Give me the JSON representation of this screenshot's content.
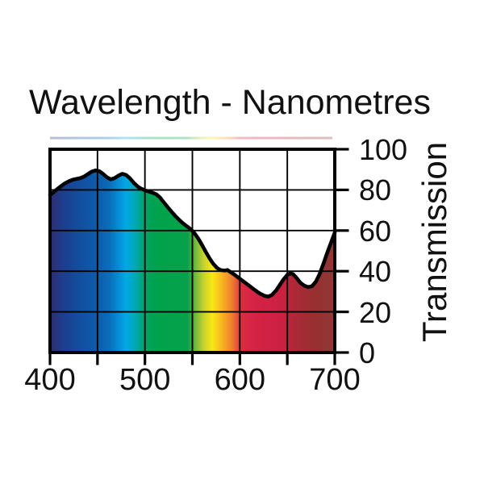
{
  "title": "Wavelength - Nanometres",
  "x_axis": {
    "labels": [
      "400",
      "500",
      "600",
      "700"
    ],
    "label_values": [
      400,
      500,
      600,
      700
    ],
    "ticks": [
      400,
      450,
      500,
      550,
      600,
      650,
      700
    ]
  },
  "y_axis": {
    "title": "Transmission",
    "labels": [
      "100",
      "80",
      "60",
      "40",
      "20",
      "0"
    ],
    "label_values": [
      100,
      80,
      60,
      40,
      20,
      0
    ],
    "ticks": [
      0,
      20,
      40,
      60,
      80,
      100
    ]
  },
  "chart_data": {
    "type": "area",
    "title": "Wavelength - Nanometres",
    "xlabel": "Wavelength - Nanometres",
    "ylabel": "Transmission",
    "xlim": [
      400,
      700
    ],
    "ylim": [
      0,
      100
    ],
    "grid": true,
    "legend": "none",
    "line_color": "#000000",
    "x": [
      400,
      404,
      408,
      412,
      416,
      420,
      424,
      428,
      432,
      436,
      440,
      444,
      448,
      452,
      456,
      460,
      464,
      468,
      472,
      476,
      480,
      484,
      488,
      492,
      496,
      500,
      504,
      508,
      512,
      516,
      520,
      524,
      528,
      532,
      536,
      540,
      544,
      548,
      552,
      556,
      560,
      564,
      568,
      572,
      576,
      580,
      584,
      587,
      590,
      594,
      598,
      602,
      606,
      610,
      614,
      618,
      622,
      626,
      630,
      634,
      638,
      642,
      646,
      650,
      653,
      656,
      660,
      664,
      668,
      672,
      676,
      680,
      684,
      688,
      692,
      696,
      700
    ],
    "y": [
      77.5,
      79,
      80.5,
      82,
      83.3,
      84.3,
      85,
      85.4,
      85.8,
      86.6,
      87.8,
      89,
      89.6,
      89.2,
      87.8,
      86.2,
      85.2,
      85.8,
      87,
      87.9,
      87.4,
      85.8,
      83.6,
      81.8,
      80.6,
      79.8,
      79.2,
      78.6,
      77.8,
      76.2,
      73.8,
      71.5,
      69.3,
      67.2,
      65.3,
      63.6,
      62.2,
      60.8,
      58.8,
      56.2,
      53,
      49.6,
      46.4,
      43.6,
      41.6,
      40.5,
      40.3,
      40.6,
      39.6,
      38.4,
      37,
      35.6,
      34.2,
      32.8,
      31.4,
      30,
      28.8,
      27.9,
      27.5,
      28.4,
      30.4,
      33.2,
      36,
      38.2,
      38.9,
      38.6,
      36.6,
      34.2,
      32.9,
      32.2,
      32.6,
      34.8,
      38.6,
      43.6,
      49,
      54,
      59
    ],
    "fill": "spectrum-gradient",
    "spectrum_stops": [
      {
        "nm": 400,
        "color": "#2d2d6d"
      },
      {
        "nm": 415,
        "color": "#1c3f90"
      },
      {
        "nm": 432,
        "color": "#124f9f"
      },
      {
        "nm": 450,
        "color": "#0d5cad"
      },
      {
        "nm": 462,
        "color": "#0a6cba"
      },
      {
        "nm": 473,
        "color": "#0590d6"
      },
      {
        "nm": 480,
        "color": "#00a9e4"
      },
      {
        "nm": 488,
        "color": "#00a9c0"
      },
      {
        "nm": 496,
        "color": "#00a583"
      },
      {
        "nm": 505,
        "color": "#00a356"
      },
      {
        "nm": 515,
        "color": "#00a24c"
      },
      {
        "nm": 545,
        "color": "#07a14a"
      },
      {
        "nm": 554,
        "color": "#79bb3d"
      },
      {
        "nm": 562,
        "color": "#c6d32e"
      },
      {
        "nm": 571,
        "color": "#f8e713"
      },
      {
        "nm": 578,
        "color": "#f9c51e"
      },
      {
        "nm": 585,
        "color": "#f4a026"
      },
      {
        "nm": 592,
        "color": "#ef7d30"
      },
      {
        "nm": 598,
        "color": "#e64a3c"
      },
      {
        "nm": 603,
        "color": "#dc2a41"
      },
      {
        "nm": 615,
        "color": "#d52345"
      },
      {
        "nm": 645,
        "color": "#cb2042"
      },
      {
        "nm": 653,
        "color": "#b52739"
      },
      {
        "nm": 665,
        "color": "#a42b36"
      },
      {
        "nm": 680,
        "color": "#963031"
      },
      {
        "nm": 700,
        "color": "#8c3a36"
      }
    ],
    "top_strip": {
      "present": true,
      "opacity": 0.32
    }
  }
}
